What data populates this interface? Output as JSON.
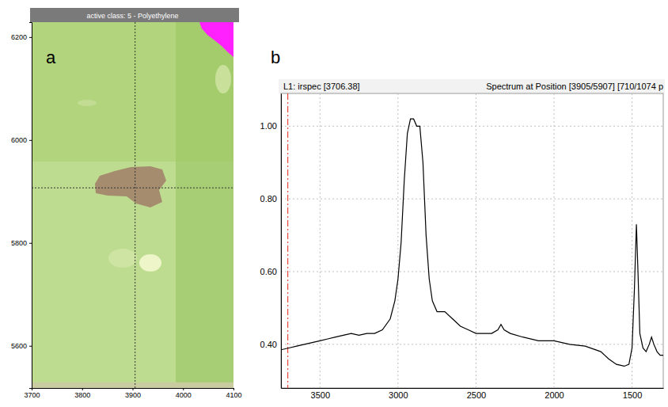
{
  "chart_data": [
    {
      "type": "image",
      "panel": "a",
      "title": "active class: 5 - Polyethylene",
      "xlim": [
        3700,
        4100
      ],
      "ylim": [
        5518,
        6229
      ],
      "xticks": [
        3700,
        3800,
        3900,
        4000,
        4100
      ],
      "yticks": [
        5600,
        5800,
        6000,
        6200
      ],
      "crosshair": {
        "x": 3905,
        "y": 5907
      }
    },
    {
      "type": "line",
      "panel": "b",
      "title": "L1: irspec [3706.38]",
      "subtitle": "Spectrum at Position [3905/5907] [710/1074 p",
      "x": [
        3750,
        3700,
        3650,
        3600,
        3550,
        3500,
        3450,
        3400,
        3350,
        3300,
        3250,
        3200,
        3150,
        3100,
        3050,
        3020,
        3000,
        2980,
        2960,
        2940,
        2920,
        2900,
        2880,
        2860,
        2840,
        2820,
        2800,
        2780,
        2750,
        2700,
        2650,
        2600,
        2550,
        2500,
        2450,
        2400,
        2360,
        2340,
        2320,
        2280,
        2200,
        2100,
        2000,
        1900,
        1800,
        1700,
        1650,
        1600,
        1550,
        1520,
        1500,
        1485,
        1472,
        1462,
        1450,
        1430,
        1410,
        1390,
        1375,
        1360,
        1340,
        1320,
        1300
      ],
      "values": [
        0.385,
        0.39,
        0.395,
        0.4,
        0.405,
        0.41,
        0.415,
        0.42,
        0.425,
        0.43,
        0.425,
        0.43,
        0.43,
        0.44,
        0.47,
        0.52,
        0.58,
        0.68,
        0.85,
        0.98,
        1.02,
        1.02,
        1.0,
        1.0,
        0.9,
        0.7,
        0.58,
        0.52,
        0.49,
        0.49,
        0.47,
        0.45,
        0.44,
        0.43,
        0.43,
        0.43,
        0.44,
        0.455,
        0.44,
        0.43,
        0.42,
        0.41,
        0.41,
        0.4,
        0.395,
        0.38,
        0.36,
        0.345,
        0.34,
        0.345,
        0.39,
        0.55,
        0.73,
        0.6,
        0.43,
        0.39,
        0.38,
        0.4,
        0.42,
        0.4,
        0.38,
        0.37,
        0.37
      ],
      "color": "#000000",
      "grid": true,
      "xlim": [
        3750,
        1300
      ],
      "ylim": [
        0.28,
        1.09
      ],
      "xticks": [
        3500,
        3000,
        2500,
        2000,
        1500
      ],
      "yticks": [
        {
          "value": 0.4,
          "label": "0.40"
        },
        {
          "value": 0.6,
          "label": "0.60"
        },
        {
          "value": 0.8,
          "label": "0.80"
        },
        {
          "value": 1.0,
          "label": "1.00"
        }
      ],
      "annotations": [
        {
          "type": "vline",
          "x": 3706.38,
          "color": "#e8493b"
        }
      ]
    }
  ]
}
